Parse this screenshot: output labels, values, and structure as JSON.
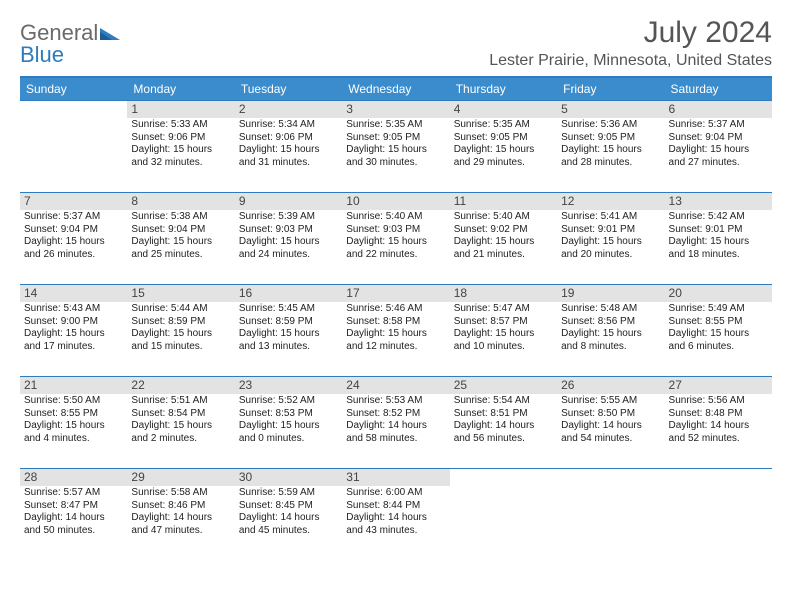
{
  "logo": {
    "part1": "General",
    "part2": "Blue"
  },
  "title": "July 2024",
  "location": "Lester Prairie, Minnesota, United States",
  "dayHeaders": [
    "Sunday",
    "Monday",
    "Tuesday",
    "Wednesday",
    "Thursday",
    "Friday",
    "Saturday"
  ],
  "colors": {
    "headerBg": "#3b8ccc",
    "borderBlue": "#2f7bbf",
    "shadeBg": "#e3e3e3",
    "textGray": "#555555",
    "logoGray": "#6a6a6a",
    "logoBlue": "#2f7bbf"
  },
  "firstDayOffset": 1,
  "days": [
    {
      "n": 1,
      "sr": "5:33 AM",
      "ss": "9:06 PM",
      "dl": "15 hours and 32 minutes."
    },
    {
      "n": 2,
      "sr": "5:34 AM",
      "ss": "9:06 PM",
      "dl": "15 hours and 31 minutes."
    },
    {
      "n": 3,
      "sr": "5:35 AM",
      "ss": "9:05 PM",
      "dl": "15 hours and 30 minutes."
    },
    {
      "n": 4,
      "sr": "5:35 AM",
      "ss": "9:05 PM",
      "dl": "15 hours and 29 minutes."
    },
    {
      "n": 5,
      "sr": "5:36 AM",
      "ss": "9:05 PM",
      "dl": "15 hours and 28 minutes."
    },
    {
      "n": 6,
      "sr": "5:37 AM",
      "ss": "9:04 PM",
      "dl": "15 hours and 27 minutes."
    },
    {
      "n": 7,
      "sr": "5:37 AM",
      "ss": "9:04 PM",
      "dl": "15 hours and 26 minutes."
    },
    {
      "n": 8,
      "sr": "5:38 AM",
      "ss": "9:04 PM",
      "dl": "15 hours and 25 minutes."
    },
    {
      "n": 9,
      "sr": "5:39 AM",
      "ss": "9:03 PM",
      "dl": "15 hours and 24 minutes."
    },
    {
      "n": 10,
      "sr": "5:40 AM",
      "ss": "9:03 PM",
      "dl": "15 hours and 22 minutes."
    },
    {
      "n": 11,
      "sr": "5:40 AM",
      "ss": "9:02 PM",
      "dl": "15 hours and 21 minutes."
    },
    {
      "n": 12,
      "sr": "5:41 AM",
      "ss": "9:01 PM",
      "dl": "15 hours and 20 minutes."
    },
    {
      "n": 13,
      "sr": "5:42 AM",
      "ss": "9:01 PM",
      "dl": "15 hours and 18 minutes."
    },
    {
      "n": 14,
      "sr": "5:43 AM",
      "ss": "9:00 PM",
      "dl": "15 hours and 17 minutes."
    },
    {
      "n": 15,
      "sr": "5:44 AM",
      "ss": "8:59 PM",
      "dl": "15 hours and 15 minutes."
    },
    {
      "n": 16,
      "sr": "5:45 AM",
      "ss": "8:59 PM",
      "dl": "15 hours and 13 minutes."
    },
    {
      "n": 17,
      "sr": "5:46 AM",
      "ss": "8:58 PM",
      "dl": "15 hours and 12 minutes."
    },
    {
      "n": 18,
      "sr": "5:47 AM",
      "ss": "8:57 PM",
      "dl": "15 hours and 10 minutes."
    },
    {
      "n": 19,
      "sr": "5:48 AM",
      "ss": "8:56 PM",
      "dl": "15 hours and 8 minutes."
    },
    {
      "n": 20,
      "sr": "5:49 AM",
      "ss": "8:55 PM",
      "dl": "15 hours and 6 minutes."
    },
    {
      "n": 21,
      "sr": "5:50 AM",
      "ss": "8:55 PM",
      "dl": "15 hours and 4 minutes."
    },
    {
      "n": 22,
      "sr": "5:51 AM",
      "ss": "8:54 PM",
      "dl": "15 hours and 2 minutes."
    },
    {
      "n": 23,
      "sr": "5:52 AM",
      "ss": "8:53 PM",
      "dl": "15 hours and 0 minutes."
    },
    {
      "n": 24,
      "sr": "5:53 AM",
      "ss": "8:52 PM",
      "dl": "14 hours and 58 minutes."
    },
    {
      "n": 25,
      "sr": "5:54 AM",
      "ss": "8:51 PM",
      "dl": "14 hours and 56 minutes."
    },
    {
      "n": 26,
      "sr": "5:55 AM",
      "ss": "8:50 PM",
      "dl": "14 hours and 54 minutes."
    },
    {
      "n": 27,
      "sr": "5:56 AM",
      "ss": "8:48 PM",
      "dl": "14 hours and 52 minutes."
    },
    {
      "n": 28,
      "sr": "5:57 AM",
      "ss": "8:47 PM",
      "dl": "14 hours and 50 minutes."
    },
    {
      "n": 29,
      "sr": "5:58 AM",
      "ss": "8:46 PM",
      "dl": "14 hours and 47 minutes."
    },
    {
      "n": 30,
      "sr": "5:59 AM",
      "ss": "8:45 PM",
      "dl": "14 hours and 45 minutes."
    },
    {
      "n": 31,
      "sr": "6:00 AM",
      "ss": "8:44 PM",
      "dl": "14 hours and 43 minutes."
    }
  ],
  "labels": {
    "sunrise": "Sunrise:",
    "sunset": "Sunset:",
    "daylight": "Daylight:"
  }
}
